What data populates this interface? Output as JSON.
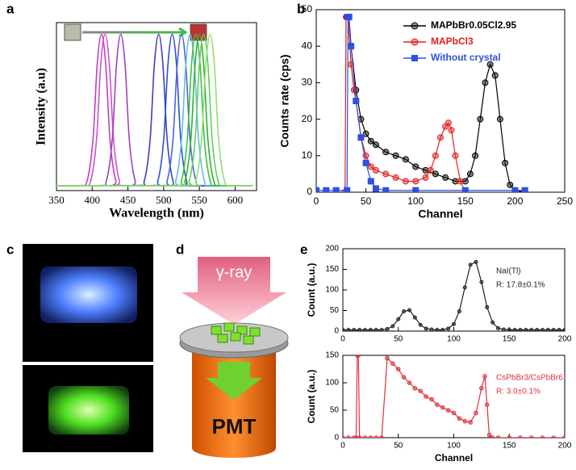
{
  "panel_labels": [
    "a",
    "b",
    "c",
    "d",
    "e"
  ],
  "diagram": {
    "source": "γ-ray",
    "detector": "PMT"
  },
  "chart_data": [
    {
      "type": "line",
      "smooth": true,
      "xlabel": "Wavelength (nm)",
      "ylabel": "Intensity (a.u)",
      "xlim": [
        350,
        630
      ],
      "xticks": [
        350,
        400,
        450,
        500,
        550,
        600
      ],
      "ylim": [
        0,
        1
      ],
      "series": [
        {
          "color": "#c040c0",
          "x": [
            350,
            383,
            393,
            401,
            407,
            413,
            419,
            425,
            433,
            443,
            625
          ],
          "values": [
            0.03,
            0.03,
            0.06,
            0.3,
            0.75,
            0.93,
            0.75,
            0.3,
            0.06,
            0.03,
            0.03
          ]
        },
        {
          "color": "#d050d0",
          "x": [
            350,
            388,
            398,
            406,
            412,
            418,
            424,
            430,
            438,
            448,
            625
          ],
          "values": [
            0.03,
            0.03,
            0.06,
            0.3,
            0.75,
            0.93,
            0.75,
            0.3,
            0.06,
            0.03,
            0.03
          ]
        },
        {
          "color": "#a040c0",
          "x": [
            350,
            410,
            420,
            428,
            434,
            440,
            446,
            452,
            460,
            470,
            625
          ],
          "values": [
            0.03,
            0.03,
            0.06,
            0.3,
            0.75,
            0.93,
            0.75,
            0.3,
            0.06,
            0.03,
            0.03
          ]
        },
        {
          "color": "#4040c0",
          "x": [
            350,
            463,
            473,
            481,
            487,
            493,
            499,
            505,
            513,
            523,
            625
          ],
          "values": [
            0.03,
            0.03,
            0.06,
            0.3,
            0.75,
            0.93,
            0.75,
            0.3,
            0.06,
            0.03,
            0.03
          ]
        },
        {
          "color": "#3050d0",
          "x": [
            350,
            482,
            492,
            500,
            506,
            512,
            518,
            524,
            532,
            542,
            625
          ],
          "values": [
            0.03,
            0.03,
            0.06,
            0.3,
            0.75,
            0.93,
            0.75,
            0.3,
            0.06,
            0.03,
            0.03
          ]
        },
        {
          "color": "#5060e0",
          "x": [
            350,
            495,
            505,
            513,
            519,
            525,
            531,
            537,
            545,
            555,
            625
          ],
          "values": [
            0.03,
            0.03,
            0.06,
            0.3,
            0.75,
            0.93,
            0.75,
            0.3,
            0.06,
            0.03,
            0.03
          ]
        },
        {
          "color": "#60c0e0",
          "x": [
            350,
            507,
            517,
            525,
            531,
            537,
            543,
            549,
            557,
            567,
            625
          ],
          "values": [
            0.03,
            0.03,
            0.06,
            0.3,
            0.75,
            0.93,
            0.75,
            0.3,
            0.06,
            0.03,
            0.03
          ]
        },
        {
          "color": "#40c040",
          "x": [
            350,
            515,
            525,
            533,
            539,
            545,
            551,
            557,
            565,
            575,
            625
          ],
          "values": [
            0.03,
            0.03,
            0.06,
            0.3,
            0.75,
            0.93,
            0.75,
            0.3,
            0.06,
            0.03,
            0.03
          ]
        },
        {
          "color": "#30b030",
          "x": [
            350,
            520,
            530,
            538,
            544,
            550,
            556,
            562,
            570,
            580,
            625
          ],
          "values": [
            0.03,
            0.03,
            0.06,
            0.3,
            0.75,
            0.93,
            0.75,
            0.3,
            0.06,
            0.03,
            0.03
          ]
        },
        {
          "color": "#60d060",
          "x": [
            350,
            526,
            536,
            544,
            550,
            556,
            562,
            568,
            576,
            586,
            625
          ],
          "values": [
            0.03,
            0.03,
            0.06,
            0.3,
            0.75,
            0.93,
            0.75,
            0.3,
            0.06,
            0.03,
            0.03
          ]
        },
        {
          "color": "#90e070",
          "x": [
            350,
            535,
            545,
            553,
            559,
            565,
            571,
            577,
            585,
            595,
            625
          ],
          "values": [
            0.03,
            0.03,
            0.06,
            0.3,
            0.75,
            0.93,
            0.75,
            0.3,
            0.06,
            0.03,
            0.03
          ]
        }
      ]
    },
    {
      "type": "line",
      "xlabel": "Channel",
      "ylabel": "Counts rate (cps)",
      "xlim": [
        0,
        250
      ],
      "xticks": [
        0,
        50,
        100,
        150,
        200,
        250
      ],
      "ylim": [
        0,
        50
      ],
      "yticks": [
        0,
        10,
        20,
        30,
        40,
        50
      ],
      "legend": "upper right",
      "series": [
        {
          "name": "MAPbBr0.05Cl2.95",
          "color": "#000000",
          "marker": "circle",
          "x": [
            31,
            33,
            35,
            40,
            45,
            50,
            55,
            60,
            70,
            80,
            90,
            100,
            110,
            120,
            130,
            140,
            150,
            155,
            160,
            165,
            170,
            175,
            180,
            185,
            190,
            195,
            200,
            210
          ],
          "values": [
            48,
            48,
            40,
            28,
            20,
            16,
            14,
            13,
            11,
            10,
            9,
            7,
            6,
            5,
            4,
            3,
            3,
            5,
            10,
            20,
            30,
            35,
            32,
            20,
            8,
            2,
            0.5,
            0
          ]
        },
        {
          "name": "MAPbCl3",
          "color": "#e02020",
          "marker": "circle",
          "x": [
            29,
            30,
            32,
            35,
            38,
            40,
            45,
            50,
            55,
            60,
            70,
            80,
            90,
            100,
            110,
            115,
            120,
            125,
            130,
            133,
            136,
            140,
            145,
            150
          ],
          "values": [
            0,
            48,
            48,
            35,
            28,
            25,
            15,
            10,
            7,
            6,
            5,
            4,
            3,
            3,
            4,
            6,
            10,
            15,
            18,
            19,
            17,
            10,
            3,
            0
          ]
        },
        {
          "name": "Without crystal",
          "color": "#3050e0",
          "marker": "square",
          "x": [
            0,
            10,
            20,
            31,
            32,
            33,
            35,
            40,
            45,
            50,
            55,
            60,
            70,
            100,
            150,
            200,
            210
          ],
          "values": [
            0.5,
            0.5,
            0.5,
            0.5,
            48,
            48,
            40,
            25,
            15,
            8,
            3,
            1,
            0.5,
            0.5,
            0.5,
            0.5,
            0.5
          ]
        }
      ]
    },
    {
      "type": "line",
      "ylabel": "Count (a.u.)",
      "xlim": [
        0,
        200
      ],
      "xticks": [
        0,
        50,
        100,
        150,
        200
      ],
      "ylim": [
        0,
        200
      ],
      "yticks": [
        0,
        50,
        100,
        150,
        200
      ],
      "annotations": [
        "NaI(Tl)",
        "R: 17.8±0.1%"
      ],
      "series": [
        {
          "color": "#222222",
          "marker": "circle",
          "x": [
            0,
            5,
            10,
            15,
            20,
            25,
            30,
            35,
            40,
            45,
            50,
            55,
            60,
            65,
            70,
            75,
            80,
            85,
            90,
            95,
            100,
            105,
            110,
            115,
            120,
            125,
            130,
            135,
            140,
            145,
            150,
            155,
            160,
            165,
            170,
            175,
            180,
            185,
            190,
            195,
            200
          ],
          "values": [
            3,
            3,
            3,
            3,
            3,
            3,
            3,
            3,
            5,
            12,
            29,
            48,
            51,
            33,
            15,
            6,
            4,
            3,
            3,
            6,
            17,
            48,
            106,
            161,
            168,
            119,
            58,
            21,
            7,
            4,
            3,
            3,
            3,
            3,
            3,
            3,
            3,
            3,
            3,
            3,
            3
          ]
        }
      ]
    },
    {
      "type": "line",
      "xlabel": "Channel",
      "ylabel": "Count  (a.u.)",
      "xlim": [
        0,
        200
      ],
      "xticks": [
        0,
        50,
        100,
        150,
        200
      ],
      "ylim": [
        0,
        150
      ],
      "yticks": [
        0,
        50,
        100,
        150
      ],
      "annotations": [
        "CsPbBr3/CsPbBr6",
        "R: 3.0±0.1%"
      ],
      "series": [
        {
          "color": "#e03040",
          "marker": "circle",
          "x": [
            0,
            5,
            10,
            12,
            13,
            14,
            15,
            20,
            25,
            30,
            35,
            40,
            45,
            50,
            55,
            60,
            65,
            70,
            75,
            80,
            85,
            90,
            95,
            100,
            105,
            110,
            115,
            120,
            125,
            128,
            130,
            132,
            135,
            140,
            150,
            160,
            170,
            180,
            190,
            200
          ],
          "values": [
            0,
            0,
            0,
            0,
            150,
            150,
            0,
            0,
            0,
            0,
            0,
            145,
            135,
            125,
            110,
            100,
            90,
            85,
            75,
            70,
            60,
            55,
            50,
            45,
            35,
            30,
            28,
            45,
            90,
            112,
            60,
            5,
            0,
            0,
            0,
            0,
            0,
            0,
            0,
            0
          ]
        }
      ]
    }
  ]
}
